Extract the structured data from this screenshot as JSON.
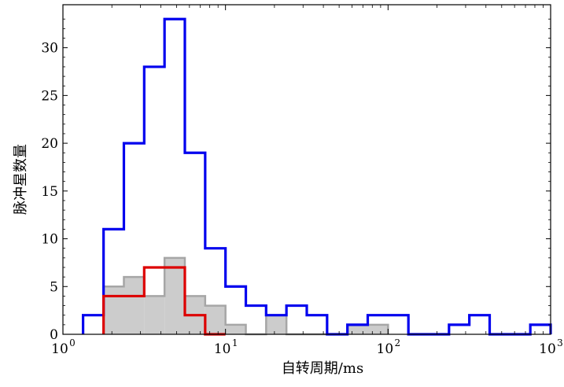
{
  "chart_data": {
    "type": "histogram",
    "x_scale": "log",
    "xlabel": "自转周期/ms",
    "ylabel": "脉冲星数量",
    "xlim": [
      1,
      1000
    ],
    "ylim": [
      0,
      34.5
    ],
    "x_ticks": [
      {
        "value": 1,
        "base": "10",
        "exp": "0"
      },
      {
        "value": 10,
        "base": "10",
        "exp": "1"
      },
      {
        "value": 100,
        "base": "10",
        "exp": "2"
      },
      {
        "value": 1000,
        "base": "10",
        "exp": "3"
      }
    ],
    "y_ticks": [
      0,
      5,
      10,
      15,
      20,
      25,
      30
    ],
    "grid": false,
    "series": [
      {
        "color": "#cccccc",
        "edge_color": "#a6a6a6",
        "style": "filled",
        "bins": [
          {
            "x0": 1.778,
            "x1": 2.371,
            "count": 5
          },
          {
            "x0": 2.371,
            "x1": 3.162,
            "count": 6
          },
          {
            "x0": 3.162,
            "x1": 4.217,
            "count": 4
          },
          {
            "x0": 4.217,
            "x1": 5.623,
            "count": 8
          },
          {
            "x0": 5.623,
            "x1": 7.499,
            "count": 4
          },
          {
            "x0": 7.499,
            "x1": 10.0,
            "count": 3
          },
          {
            "x0": 10.0,
            "x1": 13.34,
            "count": 1
          },
          {
            "x0": 13.34,
            "x1": 17.78,
            "count": 0
          },
          {
            "x0": 17.78,
            "x1": 23.71,
            "count": 2
          },
          {
            "x0": 23.71,
            "x1": 31.62,
            "count": 0
          },
          {
            "x0": 31.62,
            "x1": 42.17,
            "count": 0
          },
          {
            "x0": 42.17,
            "x1": 56.23,
            "count": 0
          },
          {
            "x0": 56.23,
            "x1": 74.99,
            "count": 1
          },
          {
            "x0": 74.99,
            "x1": 100.0,
            "count": 1
          }
        ]
      },
      {
        "color": "#0000ee",
        "style": "step",
        "bins": [
          {
            "x0": 1.33,
            "x1": 1.778,
            "count": 2
          },
          {
            "x0": 1.778,
            "x1": 2.371,
            "count": 11
          },
          {
            "x0": 2.371,
            "x1": 3.162,
            "count": 20
          },
          {
            "x0": 3.162,
            "x1": 4.217,
            "count": 28
          },
          {
            "x0": 4.217,
            "x1": 5.623,
            "count": 33
          },
          {
            "x0": 5.623,
            "x1": 7.499,
            "count": 19
          },
          {
            "x0": 7.499,
            "x1": 10.0,
            "count": 9
          },
          {
            "x0": 10.0,
            "x1": 13.34,
            "count": 5
          },
          {
            "x0": 13.34,
            "x1": 17.78,
            "count": 3
          },
          {
            "x0": 17.78,
            "x1": 23.71,
            "count": 2
          },
          {
            "x0": 23.71,
            "x1": 31.62,
            "count": 3
          },
          {
            "x0": 31.62,
            "x1": 42.17,
            "count": 2
          },
          {
            "x0": 42.17,
            "x1": 56.23,
            "count": 0
          },
          {
            "x0": 56.23,
            "x1": 74.99,
            "count": 1
          },
          {
            "x0": 74.99,
            "x1": 100.0,
            "count": 2
          },
          {
            "x0": 100.0,
            "x1": 133.4,
            "count": 2
          },
          {
            "x0": 133.4,
            "x1": 177.8,
            "count": 0
          },
          {
            "x0": 177.8,
            "x1": 237.1,
            "count": 0
          },
          {
            "x0": 237.1,
            "x1": 316.2,
            "count": 1
          },
          {
            "x0": 316.2,
            "x1": 421.7,
            "count": 2
          },
          {
            "x0": 421.7,
            "x1": 562.3,
            "count": 0
          },
          {
            "x0": 562.3,
            "x1": 749.9,
            "count": 0
          },
          {
            "x0": 749.9,
            "x1": 1000.0,
            "count": 1
          }
        ]
      },
      {
        "color": "#dd0000",
        "style": "step",
        "bins": [
          {
            "x0": 1.778,
            "x1": 2.371,
            "count": 4
          },
          {
            "x0": 2.371,
            "x1": 3.162,
            "count": 4
          },
          {
            "x0": 3.162,
            "x1": 4.217,
            "count": 7
          },
          {
            "x0": 4.217,
            "x1": 5.623,
            "count": 7
          },
          {
            "x0": 5.623,
            "x1": 7.499,
            "count": 2
          },
          {
            "x0": 7.499,
            "x1": 10.0,
            "count": 0
          }
        ]
      }
    ]
  }
}
